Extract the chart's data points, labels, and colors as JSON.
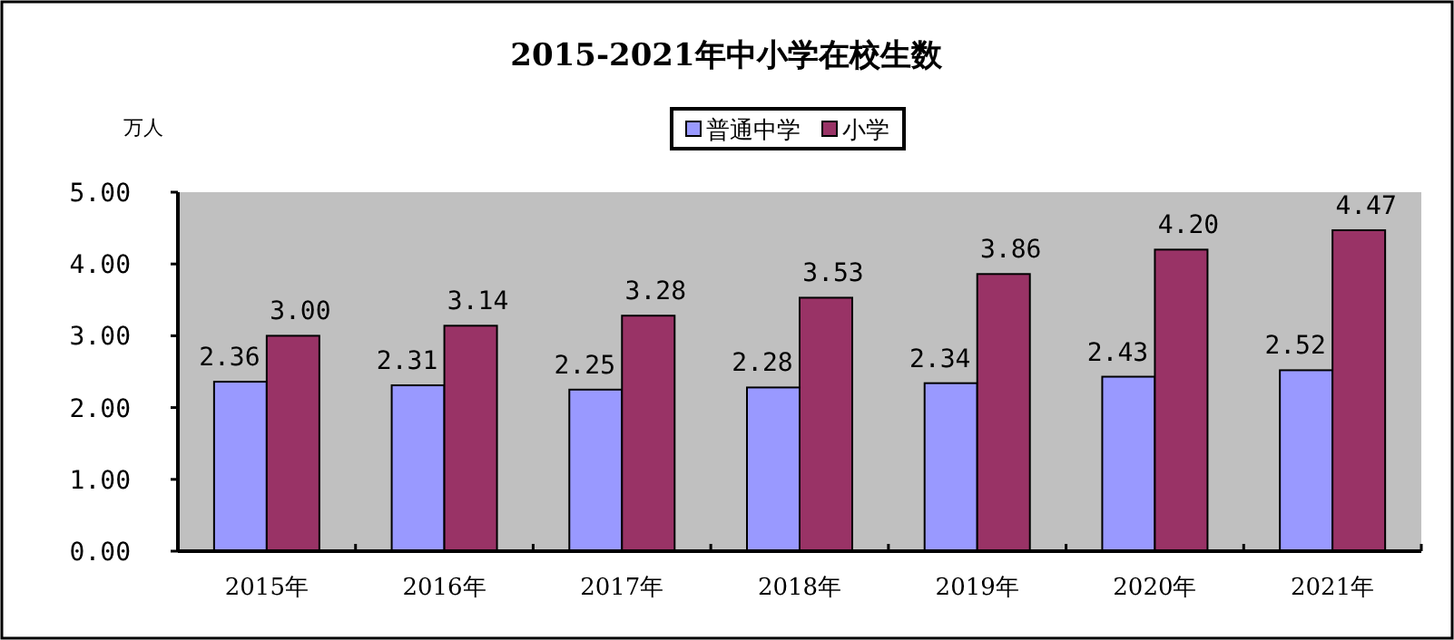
{
  "chart_data": {
    "type": "bar",
    "title": "2015-2021年中小学在校生数",
    "ylabel": "万人",
    "categories": [
      "2015年",
      "2016年",
      "2017年",
      "2018年",
      "2019年",
      "2020年",
      "2021年"
    ],
    "series": [
      {
        "name": "普通中学",
        "color": "#9999ff",
        "values": [
          2.36,
          2.31,
          2.25,
          2.28,
          2.34,
          2.43,
          2.52
        ],
        "value_labels": [
          "2.36",
          "2.31",
          "2.25",
          "2.28",
          "2.34",
          "2.43",
          "2.52"
        ]
      },
      {
        "name": "小学",
        "color": "#993366",
        "values": [
          3.0,
          3.14,
          3.28,
          3.53,
          3.86,
          4.2,
          4.47
        ],
        "value_labels": [
          "3.00",
          "3.14",
          "3.28",
          "3.53",
          "3.86",
          "4.20",
          "4.47"
        ]
      }
    ],
    "ylim": [
      0,
      5
    ],
    "yticks": [
      {
        "value": 0,
        "label": "0.00"
      },
      {
        "value": 1,
        "label": "1.00"
      },
      {
        "value": 2,
        "label": "2.00"
      },
      {
        "value": 3,
        "label": "3.00"
      },
      {
        "value": 4,
        "label": "4.00"
      },
      {
        "value": 5,
        "label": "5.00"
      }
    ],
    "grid": false,
    "legend": "top"
  }
}
